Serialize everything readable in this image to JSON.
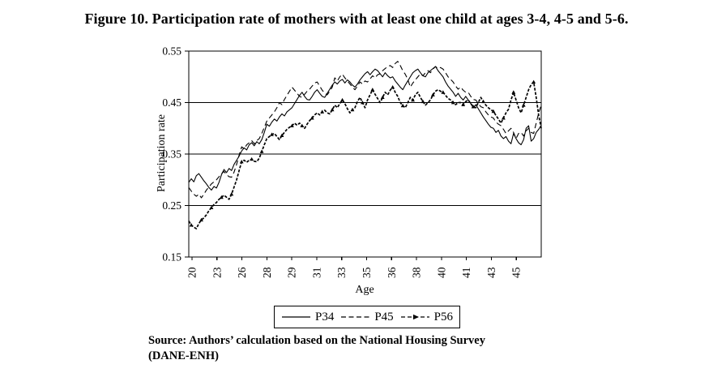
{
  "figure_title": "Figure 10. Participation rate of mothers with at least one child at ages 3-4, 4-5 and 5-6.",
  "source_line1": "Source: Authors’ calculation based on the National Housing Survey",
  "source_line2": "(DANE-ENH)",
  "colors": {
    "line": "#000000",
    "background": "#ffffff"
  },
  "chart_data": {
    "type": "line",
    "title": "Figure 10. Participation rate of mothers with at least one child at ages 3-4, 4-5 and 5-6.",
    "xlabel": "Age",
    "ylabel": "Participation rate",
    "ylim": [
      0.15,
      0.55
    ],
    "y_ticks": [
      "0.55",
      "0.45",
      "0.35",
      "0.25",
      "0.15"
    ],
    "grid_y_values": [
      0.25,
      0.35,
      0.45
    ],
    "x_ticks": [
      "20",
      "23",
      "26",
      "28",
      "29",
      "31",
      "33",
      "35",
      "36",
      "38",
      "40",
      "41",
      "43",
      "45"
    ],
    "legend_position": "bottom-center",
    "grid": "horizontal-only",
    "series": [
      {
        "name": "P34",
        "style": "solid",
        "values": [
          0.295,
          0.302,
          0.296,
          0.308,
          0.312,
          0.305,
          0.298,
          0.292,
          0.285,
          0.28,
          0.287,
          0.284,
          0.295,
          0.31,
          0.32,
          0.314,
          0.322,
          0.318,
          0.33,
          0.338,
          0.346,
          0.356,
          0.362,
          0.358,
          0.368,
          0.372,
          0.366,
          0.374,
          0.37,
          0.378,
          0.392,
          0.408,
          0.404,
          0.412,
          0.418,
          0.414,
          0.422,
          0.428,
          0.424,
          0.432,
          0.436,
          0.44,
          0.448,
          0.456,
          0.464,
          0.47,
          0.462,
          0.456,
          0.455,
          0.462,
          0.47,
          0.475,
          0.468,
          0.462,
          0.46,
          0.468,
          0.476,
          0.484,
          0.49,
          0.486,
          0.492,
          0.495,
          0.488,
          0.494,
          0.49,
          0.484,
          0.48,
          0.486,
          0.494,
          0.5,
          0.506,
          0.51,
          0.504,
          0.51,
          0.515,
          0.512,
          0.506,
          0.5,
          0.508,
          0.502,
          0.498,
          0.5,
          0.492,
          0.486,
          0.48,
          0.475,
          0.484,
          0.492,
          0.5,
          0.508,
          0.512,
          0.515,
          0.508,
          0.502,
          0.5,
          0.508,
          0.512,
          0.516,
          0.52,
          0.512,
          0.506,
          0.5,
          0.49,
          0.482,
          0.476,
          0.47,
          0.462,
          0.468,
          0.46,
          0.455,
          0.462,
          0.455,
          0.448,
          0.44,
          0.446,
          0.438,
          0.43,
          0.422,
          0.415,
          0.408,
          0.402,
          0.4,
          0.392,
          0.396,
          0.385,
          0.38,
          0.384,
          0.375,
          0.37,
          0.39,
          0.38,
          0.372,
          0.368,
          0.378,
          0.4,
          0.405,
          0.375,
          0.38,
          0.392,
          0.398,
          0.406
        ]
      },
      {
        "name": "P45",
        "style": "dashed",
        "values": [
          0.285,
          0.278,
          0.272,
          0.268,
          0.272,
          0.265,
          0.272,
          0.28,
          0.286,
          0.292,
          0.296,
          0.3,
          0.306,
          0.312,
          0.316,
          0.31,
          0.306,
          0.305,
          0.315,
          0.33,
          0.348,
          0.364,
          0.36,
          0.368,
          0.372,
          0.376,
          0.37,
          0.376,
          0.38,
          0.39,
          0.402,
          0.414,
          0.42,
          0.426,
          0.432,
          0.44,
          0.45,
          0.446,
          0.456,
          0.464,
          0.472,
          0.48,
          0.474,
          0.468,
          0.462,
          0.46,
          0.466,
          0.472,
          0.476,
          0.482,
          0.488,
          0.49,
          0.482,
          0.474,
          0.468,
          0.465,
          0.472,
          0.48,
          0.498,
          0.492,
          0.5,
          0.505,
          0.498,
          0.492,
          0.486,
          0.48,
          0.475,
          0.482,
          0.49,
          0.486,
          0.492,
          0.49,
          0.496,
          0.502,
          0.498,
          0.504,
          0.506,
          0.512,
          0.516,
          0.52,
          0.522,
          0.518,
          0.526,
          0.53,
          0.522,
          0.512,
          0.505,
          0.495,
          0.48,
          0.488,
          0.494,
          0.5,
          0.506,
          0.502,
          0.508,
          0.512,
          0.508,
          0.515,
          0.52,
          0.516,
          0.518,
          0.515,
          0.508,
          0.5,
          0.495,
          0.49,
          0.482,
          0.476,
          0.48,
          0.474,
          0.47,
          0.47,
          0.462,
          0.456,
          0.455,
          0.448,
          0.442,
          0.44,
          0.432,
          0.426,
          0.422,
          0.42,
          0.412,
          0.408,
          0.405,
          0.398,
          0.39,
          0.395,
          0.4,
          0.392,
          0.38,
          0.39,
          0.392,
          0.385,
          0.395,
          0.4,
          0.392,
          0.39,
          0.41,
          0.43,
          0.445
        ]
      },
      {
        "name": "P56",
        "style": "dash-marker",
        "values": [
          0.22,
          0.212,
          0.208,
          0.205,
          0.215,
          0.222,
          0.226,
          0.232,
          0.24,
          0.246,
          0.252,
          0.256,
          0.262,
          0.266,
          0.27,
          0.266,
          0.262,
          0.272,
          0.286,
          0.3,
          0.318,
          0.335,
          0.338,
          0.334,
          0.338,
          0.34,
          0.336,
          0.335,
          0.342,
          0.355,
          0.368,
          0.38,
          0.384,
          0.388,
          0.39,
          0.384,
          0.378,
          0.386,
          0.392,
          0.398,
          0.402,
          0.405,
          0.41,
          0.406,
          0.41,
          0.405,
          0.4,
          0.408,
          0.415,
          0.42,
          0.426,
          0.43,
          0.426,
          0.432,
          0.435,
          0.43,
          0.428,
          0.436,
          0.445,
          0.44,
          0.448,
          0.455,
          0.448,
          0.438,
          0.43,
          0.436,
          0.44,
          0.452,
          0.46,
          0.45,
          0.44,
          0.455,
          0.465,
          0.475,
          0.466,
          0.458,
          0.45,
          0.46,
          0.47,
          0.465,
          0.474,
          0.48,
          0.47,
          0.462,
          0.45,
          0.444,
          0.44,
          0.45,
          0.46,
          0.455,
          0.465,
          0.47,
          0.46,
          0.452,
          0.445,
          0.45,
          0.455,
          0.465,
          0.472,
          0.475,
          0.472,
          0.47,
          0.464,
          0.458,
          0.455,
          0.45,
          0.446,
          0.45,
          0.45,
          0.446,
          0.452,
          0.455,
          0.448,
          0.442,
          0.44,
          0.45,
          0.46,
          0.452,
          0.445,
          0.44,
          0.436,
          0.433,
          0.425,
          0.418,
          0.41,
          0.42,
          0.43,
          0.437,
          0.455,
          0.47,
          0.455,
          0.44,
          0.43,
          0.445,
          0.46,
          0.475,
          0.485,
          0.49,
          0.46,
          0.425,
          0.4
        ]
      }
    ]
  }
}
